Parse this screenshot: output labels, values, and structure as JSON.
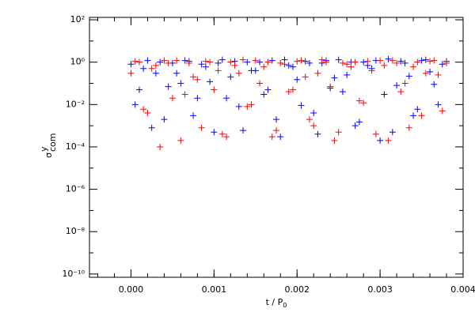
{
  "chart_data": {
    "type": "scatter",
    "x_label": "t / P",
    "x_label_sub": "0",
    "y_label": "σ",
    "y_label_sup": "y",
    "y_label_sub": "com",
    "x": [
      0,
      0.0001,
      0.0002,
      0.0003,
      0.0004,
      0.0005,
      0.0006,
      0.0007,
      0.0008,
      0.0009,
      0.001,
      0.0011,
      0.0012,
      0.0013,
      0.0014,
      0.0015,
      0.0016,
      0.0017,
      0.0018,
      0.0019,
      0.002,
      0.0021,
      0.0022,
      0.0023,
      0.0024,
      0.0025,
      0.0026,
      0.0027,
      0.0028,
      0.0029,
      0.003,
      0.0031,
      0.0032,
      0.0033,
      0.0034,
      0.0035,
      0.0036,
      0.0037,
      0.0038,
      5e-05,
      0.00015,
      0.00025,
      0.00035,
      0.00045,
      0.00055,
      0.00065,
      0.00075,
      0.00085,
      0.00095,
      0.00105,
      0.00115,
      0.00125,
      0.00135,
      0.00145,
      0.00155,
      0.00165,
      0.00175,
      0.00185,
      0.00195,
      0.00205,
      0.00215,
      0.00225,
      0.00235,
      0.00245,
      0.00255,
      0.00265,
      0.00275,
      0.00285,
      0.00295,
      0.00305,
      0.00315,
      0.00325,
      0.00335,
      0.00345,
      0.00355,
      0.00365,
      0.00375
    ],
    "series": [
      {
        "color": "#0000ff",
        "values": [
          0.8,
          0.05,
          1.2,
          0.3,
          0.002,
          0.9,
          0.1,
          1.1,
          0.02,
          0.6,
          0.0005,
          1.3,
          0.2,
          0.008,
          1.0,
          0.4,
          0.03,
          1.2,
          0.0003,
          0.7,
          0.15,
          1.1,
          0.004,
          0.9,
          0.06,
          1.3,
          0.25,
          0.001,
          1.0,
          0.5,
          0.0002,
          1.4,
          0.08,
          0.9,
          0.003,
          1.2,
          0.35,
          0.01,
          1.1,
          0.01,
          0.5,
          0.0008,
          1.0,
          0.07,
          0.3,
          1.2,
          0.003,
          0.8,
          0.12,
          0.9,
          0.02,
          1.1,
          0.0006,
          0.4,
          1.0,
          0.05,
          0.002,
          1.3,
          0.6,
          0.009,
          0.9,
          0.0004,
          1.2,
          0.18,
          0.04,
          1.0,
          0.0015,
          0.7,
          1.2,
          0.03,
          0.0005,
          1.1,
          0.22,
          0.006,
          1.3,
          0.09,
          0.8
        ]
      },
      {
        "color": "#ff0000",
        "values": [
          0.3,
          1.0,
          0.004,
          0.7,
          1.2,
          0.02,
          0.0002,
          0.9,
          0.15,
          1.1,
          0.05,
          0.0004,
          1.0,
          0.3,
          0.008,
          1.2,
          0.6,
          0.0003,
          0.9,
          0.04,
          1.1,
          0.2,
          0.001,
          1.3,
          0.07,
          0.0005,
          0.8,
          1.0,
          0.012,
          0.4,
          1.2,
          0.0002,
          0.9,
          0.1,
          0.6,
          0.003,
          1.1,
          0.25,
          0.9,
          1.1,
          0.006,
          0.5,
          0.0001,
          0.9,
          1.2,
          0.03,
          0.2,
          0.0008,
          1.0,
          0.4,
          0.0003,
          0.7,
          1.3,
          0.01,
          0.1,
          1.0,
          0.0006,
          0.8,
          0.05,
          1.2,
          0.002,
          0.3,
          1.0,
          0.0002,
          0.9,
          0.6,
          0.015,
          1.1,
          0.0004,
          0.7,
          1.2,
          0.04,
          0.0008,
          1.0,
          0.3,
          1.2,
          0.005
        ]
      }
    ],
    "xlim": [
      -0.0005,
      0.004
    ],
    "xticks": [
      {
        "value": 0,
        "label": "0.000"
      },
      {
        "value": 0.001,
        "label": "0.001"
      },
      {
        "value": 0.002,
        "label": "0.002"
      },
      {
        "value": 0.003,
        "label": "0.003"
      },
      {
        "value": 0.004,
        "label": "0.004"
      }
    ],
    "ylim": [
      7e-11,
      130
    ],
    "log_y": true,
    "yticks": [
      {
        "value": 1e-10,
        "label": "10⁻¹⁰"
      },
      {
        "value": 1e-08,
        "label": "10⁻⁸"
      },
      {
        "value": 1e-06,
        "label": "10⁻⁶"
      },
      {
        "value": 0.0001,
        "label": "10⁻⁴"
      },
      {
        "value": 0.01,
        "label": "10⁻²"
      },
      {
        "value": 1,
        "label": "10⁰"
      },
      {
        "value": 100,
        "label": "10²"
      }
    ]
  }
}
